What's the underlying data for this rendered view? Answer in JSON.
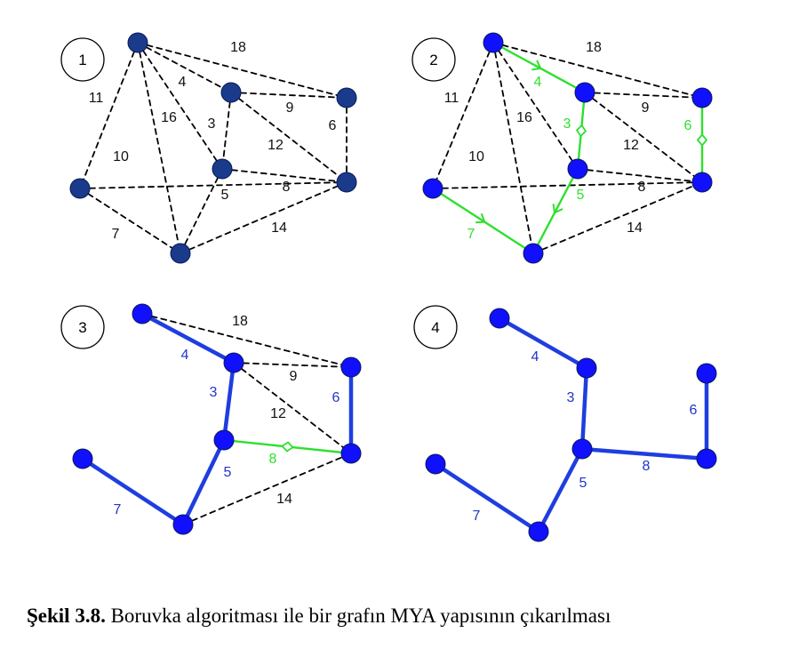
{
  "colors": {
    "node_dark": "#1a3a8c",
    "node_blue": "#1010ff",
    "edge_dashed": "#000000",
    "edge_green": "#2ee02e",
    "edge_blue": "#1e3ee0",
    "text_black": "#111111",
    "text_green": "#2ee02e",
    "text_blue": "#2233cc"
  },
  "panels": [
    {
      "id": "1",
      "badge": "1",
      "node_style": "dark",
      "edges": [
        {
          "id": "ab",
          "w": "18",
          "style": "dashed"
        },
        {
          "id": "ac",
          "w": "4",
          "style": "dashed"
        },
        {
          "id": "ad",
          "w": "11",
          "style": "dashed"
        },
        {
          "id": "ae",
          "w": "16",
          "style": "dashed"
        },
        {
          "id": "af",
          "w": "",
          "style": "dashed"
        },
        {
          "id": "cb",
          "w": "9",
          "style": "dashed"
        },
        {
          "id": "cf",
          "w": "3",
          "style": "dashed"
        },
        {
          "id": "cg",
          "w": "12",
          "style": "dashed"
        },
        {
          "id": "bg",
          "w": "6",
          "style": "dashed"
        },
        {
          "id": "dg",
          "w": "10",
          "style": "dashed"
        },
        {
          "id": "de",
          "w": "7",
          "style": "dashed"
        },
        {
          "id": "fg",
          "w": "8",
          "style": "dashed"
        },
        {
          "id": "fe",
          "w": "5",
          "style": "dashed"
        },
        {
          "id": "eg",
          "w": "14",
          "style": "dashed"
        }
      ]
    },
    {
      "id": "2",
      "badge": "2",
      "node_style": "blue",
      "edges": [
        {
          "id": "ab",
          "w": "18",
          "style": "dashed"
        },
        {
          "id": "ac",
          "w": "4",
          "style": "green",
          "marker": "arrow"
        },
        {
          "id": "ad",
          "w": "11",
          "style": "dashed"
        },
        {
          "id": "ae",
          "w": "16",
          "style": "dashed"
        },
        {
          "id": "af",
          "w": "",
          "style": "dashed"
        },
        {
          "id": "cb",
          "w": "9",
          "style": "dashed"
        },
        {
          "id": "cf",
          "w": "3",
          "style": "green",
          "marker": "diamond"
        },
        {
          "id": "cg",
          "w": "12",
          "style": "dashed"
        },
        {
          "id": "bg",
          "w": "6",
          "style": "green",
          "marker": "diamond"
        },
        {
          "id": "dg",
          "w": "10",
          "style": "dashed"
        },
        {
          "id": "de",
          "w": "7",
          "style": "green",
          "marker": "arrow"
        },
        {
          "id": "fg",
          "w": "8",
          "style": "dashed"
        },
        {
          "id": "fe",
          "w": "5",
          "style": "green",
          "marker": "arrow"
        },
        {
          "id": "eg",
          "w": "14",
          "style": "dashed"
        }
      ]
    },
    {
      "id": "3",
      "badge": "3",
      "node_style": "blue",
      "edges": [
        {
          "id": "ab",
          "w": "18",
          "style": "dashed"
        },
        {
          "id": "ac",
          "w": "4",
          "style": "blue"
        },
        {
          "id": "cb",
          "w": "9",
          "style": "dashed"
        },
        {
          "id": "cf",
          "w": "3",
          "style": "blue"
        },
        {
          "id": "cg",
          "w": "12",
          "style": "dashed"
        },
        {
          "id": "bg",
          "w": "6",
          "style": "blue"
        },
        {
          "id": "de",
          "w": "7",
          "style": "blue"
        },
        {
          "id": "fg",
          "w": "8",
          "style": "green",
          "marker": "diamond"
        },
        {
          "id": "fe",
          "w": "5",
          "style": "blue"
        },
        {
          "id": "eg",
          "w": "14",
          "style": "dashed"
        }
      ]
    },
    {
      "id": "4",
      "badge": "4",
      "node_style": "blue",
      "edges": [
        {
          "id": "ac",
          "w": "4",
          "style": "blue"
        },
        {
          "id": "cf",
          "w": "3",
          "style": "blue"
        },
        {
          "id": "bg",
          "w": "6",
          "style": "blue"
        },
        {
          "id": "de",
          "w": "7",
          "style": "blue"
        },
        {
          "id": "fg",
          "w": "8",
          "style": "blue"
        },
        {
          "id": "fe",
          "w": "5",
          "style": "blue"
        }
      ]
    }
  ],
  "caption": {
    "lead": "Şekil 3.8.",
    "text": " Boruvka algoritması ile bir grafın MYA yapısının çıkarılması"
  }
}
